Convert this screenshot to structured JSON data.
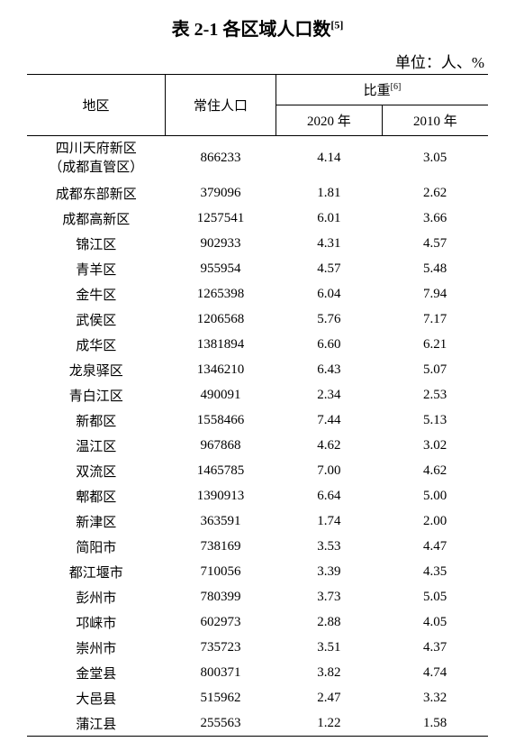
{
  "title_prefix": "表 2-1 各区域人口数",
  "title_sup": "[5]",
  "unit_label": "单位：人、%",
  "headers": {
    "region": "地区",
    "population": "常住人口",
    "proportion": "比重",
    "proportion_sup": "[6]",
    "year_2020": "2020 年",
    "year_2010": "2010 年"
  },
  "rows": [
    {
      "region_line1": "四川天府新区",
      "region_line2": "（成都直管区）",
      "pop": "866233",
      "p2020": "4.14",
      "p2010": "3.05"
    },
    {
      "region": "成都东部新区",
      "pop": "379096",
      "p2020": "1.81",
      "p2010": "2.62"
    },
    {
      "region": "成都高新区",
      "pop": "1257541",
      "p2020": "6.01",
      "p2010": "3.66"
    },
    {
      "region": "锦江区",
      "pop": "902933",
      "p2020": "4.31",
      "p2010": "4.57"
    },
    {
      "region": "青羊区",
      "pop": "955954",
      "p2020": "4.57",
      "p2010": "5.48"
    },
    {
      "region": "金牛区",
      "pop": "1265398",
      "p2020": "6.04",
      "p2010": "7.94"
    },
    {
      "region": "武侯区",
      "pop": "1206568",
      "p2020": "5.76",
      "p2010": "7.17"
    },
    {
      "region": "成华区",
      "pop": "1381894",
      "p2020": "6.60",
      "p2010": "6.21"
    },
    {
      "region": "龙泉驿区",
      "pop": "1346210",
      "p2020": "6.43",
      "p2010": "5.07"
    },
    {
      "region": "青白江区",
      "pop": "490091",
      "p2020": "2.34",
      "p2010": "2.53"
    },
    {
      "region": "新都区",
      "pop": "1558466",
      "p2020": "7.44",
      "p2010": "5.13"
    },
    {
      "region": "温江区",
      "pop": "967868",
      "p2020": "4.62",
      "p2010": "3.02"
    },
    {
      "region": "双流区",
      "pop": "1465785",
      "p2020": "7.00",
      "p2010": "4.62"
    },
    {
      "region": "郫都区",
      "pop": "1390913",
      "p2020": "6.64",
      "p2010": "5.00"
    },
    {
      "region": "新津区",
      "pop": "363591",
      "p2020": "1.74",
      "p2010": "2.00"
    },
    {
      "region": "简阳市",
      "pop": "738169",
      "p2020": "3.53",
      "p2010": "4.47"
    },
    {
      "region": "都江堰市",
      "pop": "710056",
      "p2020": "3.39",
      "p2010": "4.35"
    },
    {
      "region": "彭州市",
      "pop": "780399",
      "p2020": "3.73",
      "p2010": "5.05"
    },
    {
      "region": "邛崃市",
      "pop": "602973",
      "p2020": "2.88",
      "p2010": "4.05"
    },
    {
      "region": "崇州市",
      "pop": "735723",
      "p2020": "3.51",
      "p2010": "4.37"
    },
    {
      "region": "金堂县",
      "pop": "800371",
      "p2020": "3.82",
      "p2010": "4.74"
    },
    {
      "region": "大邑县",
      "pop": "515962",
      "p2020": "2.47",
      "p2010": "3.32"
    },
    {
      "region": "蒲江县",
      "pop": "255563",
      "p2020": "1.22",
      "p2010": "1.58"
    }
  ],
  "style": {
    "background_color": "#ffffff",
    "text_color": "#000000",
    "border_color": "#000000",
    "title_fontsize": 20,
    "unit_fontsize": 17,
    "body_fontsize": 15,
    "font_family": "SimSun"
  }
}
